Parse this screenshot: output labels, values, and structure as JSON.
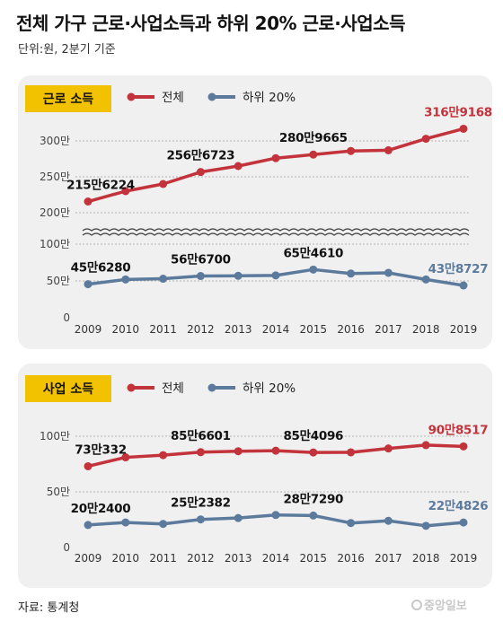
{
  "title": "전체 가구 근로·사업소득과 하위 20% 근로·사업소득",
  "subtitle": "단위:원, 2분기 기준",
  "source": "자료: 통계청",
  "logo": "중앙일보",
  "colors": {
    "total": "#c2333b",
    "bottom20": "#5b7a9c",
    "tag": "#f2c200",
    "panel": "#f0f0f0"
  },
  "chart_data": [
    {
      "type": "line",
      "panel_label": "근로 소득",
      "categories": [
        "2009",
        "2010",
        "2011",
        "2012",
        "2013",
        "2014",
        "2015",
        "2016",
        "2017",
        "2018",
        "2019"
      ],
      "series": [
        {
          "name": "전체",
          "values": [
            2156224,
            2300000,
            2400000,
            2566723,
            2650000,
            2760000,
            2809665,
            2860000,
            2870000,
            3030000,
            3169168
          ]
        },
        {
          "name": "하위 20%",
          "values": [
            456280,
            520000,
            530000,
            566700,
            570000,
            575000,
            654610,
            600000,
            610000,
            520000,
            438727
          ]
        }
      ],
      "yticks": [
        {
          "value": 3000000,
          "label": "300만"
        },
        {
          "value": 2500000,
          "label": "250만"
        },
        {
          "value": 2000000,
          "label": "200만"
        },
        {
          "value": 1000000,
          "label": "100만"
        },
        {
          "value": 500000,
          "label": "50만"
        },
        {
          "value": 0,
          "label": "0"
        }
      ],
      "axis_break": [
        1000000,
        2000000
      ],
      "annotations": [
        {
          "series": 0,
          "index": 0,
          "text": "215만6224"
        },
        {
          "series": 0,
          "index": 3,
          "text": "256만6723"
        },
        {
          "series": 0,
          "index": 6,
          "text": "280만9665"
        },
        {
          "series": 0,
          "index": 10,
          "text": "316만9168"
        },
        {
          "series": 1,
          "index": 0,
          "text": "45만6280"
        },
        {
          "series": 1,
          "index": 3,
          "text": "56만6700"
        },
        {
          "series": 1,
          "index": 6,
          "text": "65만4610"
        },
        {
          "series": 1,
          "index": 10,
          "text": "43만8727"
        }
      ]
    },
    {
      "type": "line",
      "panel_label": "사업 소득",
      "categories": [
        "2009",
        "2010",
        "2011",
        "2012",
        "2013",
        "2014",
        "2015",
        "2016",
        "2017",
        "2018",
        "2019"
      ],
      "series": [
        {
          "name": "전체",
          "values": [
            730332,
            810000,
            830000,
            856601,
            865000,
            870000,
            854096,
            855000,
            890000,
            920000,
            908517
          ]
        },
        {
          "name": "하위 20%",
          "values": [
            202400,
            225000,
            212000,
            252382,
            265000,
            292000,
            287290,
            220000,
            240000,
            195000,
            224826
          ]
        }
      ],
      "yticks": [
        {
          "value": 1000000,
          "label": "100만"
        },
        {
          "value": 500000,
          "label": "50만"
        },
        {
          "value": 0,
          "label": "0"
        }
      ],
      "annotations": [
        {
          "series": 0,
          "index": 0,
          "text": "73만332"
        },
        {
          "series": 0,
          "index": 3,
          "text": "85만6601"
        },
        {
          "series": 0,
          "index": 6,
          "text": "85만4096"
        },
        {
          "series": 0,
          "index": 10,
          "text": "90만8517"
        },
        {
          "series": 1,
          "index": 0,
          "text": "20만2400"
        },
        {
          "series": 1,
          "index": 3,
          "text": "25만2382"
        },
        {
          "series": 1,
          "index": 6,
          "text": "28만7290"
        },
        {
          "series": 1,
          "index": 10,
          "text": "22만4826"
        }
      ]
    }
  ]
}
